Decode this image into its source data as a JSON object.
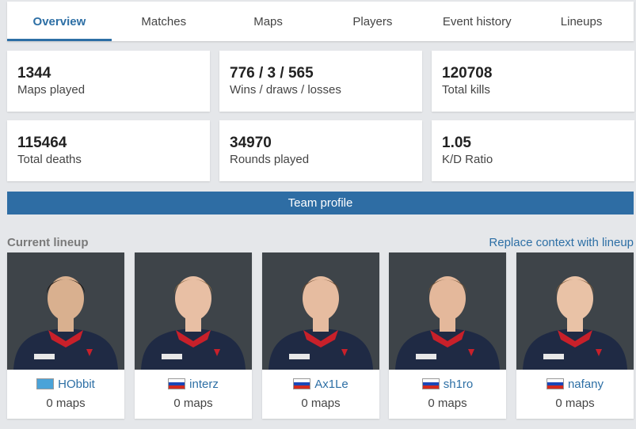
{
  "tabs": [
    {
      "label": "Overview",
      "active": true
    },
    {
      "label": "Matches",
      "active": false
    },
    {
      "label": "Maps",
      "active": false
    },
    {
      "label": "Players",
      "active": false
    },
    {
      "label": "Event history",
      "active": false
    },
    {
      "label": "Lineups",
      "active": false
    }
  ],
  "stats": [
    {
      "value": "1344",
      "label": "Maps played"
    },
    {
      "value": "776 / 3 / 565",
      "label": "Wins / draws / losses"
    },
    {
      "value": "120708",
      "label": "Total kills"
    },
    {
      "value": "115464",
      "label": "Total deaths"
    },
    {
      "value": "34970",
      "label": "Rounds played"
    },
    {
      "value": "1.05",
      "label": "K/D Ratio"
    }
  ],
  "team_profile_label": "Team profile",
  "lineup": {
    "heading": "Current lineup",
    "replace_link": "Replace context with lineup",
    "players": [
      {
        "name": "HObbit",
        "flag": "kz",
        "maps": "0 maps",
        "hair": "#1c1510",
        "skin": "#d9b08f"
      },
      {
        "name": "interz",
        "flag": "ru",
        "maps": "0 maps",
        "hair": "#8a6a45",
        "skin": "#e8bfa4"
      },
      {
        "name": "Ax1Le",
        "flag": "ru",
        "maps": "0 maps",
        "hair": "#6b4a2e",
        "skin": "#e6bca0"
      },
      {
        "name": "sh1ro",
        "flag": "ru",
        "maps": "0 maps",
        "hair": "#6e5236",
        "skin": "#e4b89b"
      },
      {
        "name": "nafany",
        "flag": "ru",
        "maps": "0 maps",
        "hair": "#7a5a3a",
        "skin": "#e9c2a6"
      }
    ]
  }
}
